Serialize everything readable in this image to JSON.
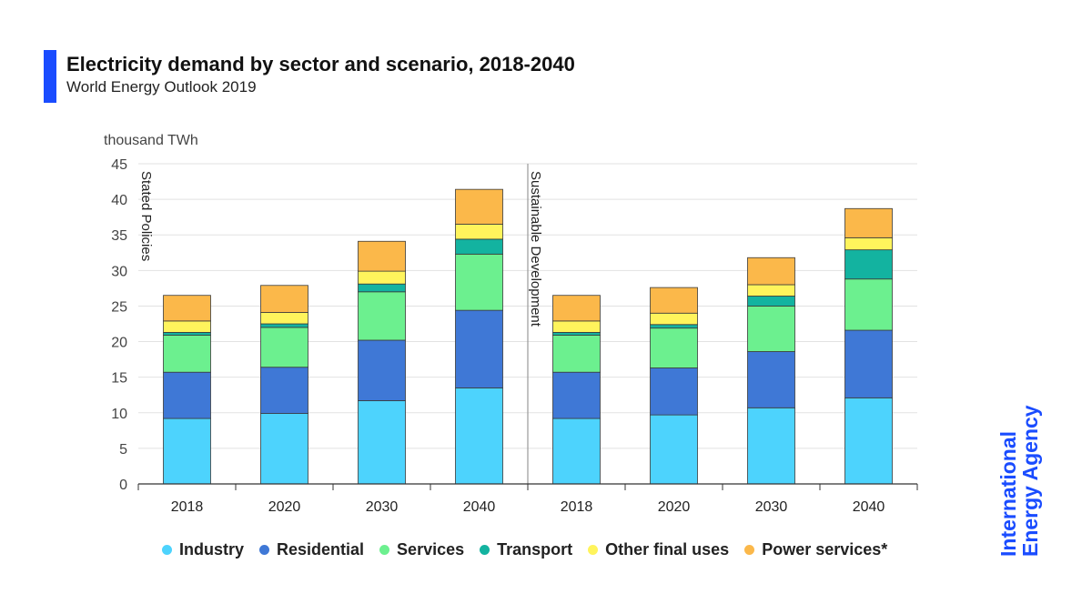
{
  "header": {
    "title": "Electricity demand by sector and scenario, 2018-2040",
    "subtitle": "World Energy Outlook 2019"
  },
  "logo": {
    "line1": "International",
    "line2": "Energy Agency",
    "color": "#1a4cff"
  },
  "chart_data": {
    "type": "bar",
    "stacked": true,
    "ylabel": "thousand TWh",
    "ylim": [
      0,
      45
    ],
    "yticks": [
      0,
      5,
      10,
      15,
      20,
      25,
      30,
      35,
      40,
      45
    ],
    "grid": true,
    "legend_position": "bottom",
    "groups": [
      {
        "label": "Stated Policies",
        "categories": [
          "2018",
          "2020",
          "2030",
          "2040"
        ]
      },
      {
        "label": "Sustainable Development",
        "categories": [
          "2018",
          "2020",
          "2030",
          "2040"
        ]
      }
    ],
    "categories": [
      "2018",
      "2020",
      "2030",
      "2040",
      "2018",
      "2020",
      "2030",
      "2040"
    ],
    "series": [
      {
        "name": "Industry",
        "color": "#4dd3fd",
        "values": [
          9.2,
          9.9,
          11.7,
          13.5,
          9.2,
          9.7,
          10.7,
          12.1
        ]
      },
      {
        "name": "Residential",
        "color": "#3f78d6",
        "values": [
          6.5,
          6.5,
          8.5,
          10.9,
          6.5,
          6.6,
          7.9,
          9.5
        ]
      },
      {
        "name": "Services",
        "color": "#6cf08f",
        "values": [
          5.2,
          5.6,
          6.8,
          7.9,
          5.2,
          5.6,
          6.4,
          7.2
        ]
      },
      {
        "name": "Transport",
        "color": "#13b3a0",
        "values": [
          0.4,
          0.5,
          1.1,
          2.1,
          0.4,
          0.5,
          1.4,
          4.1
        ]
      },
      {
        "name": "Other final uses",
        "color": "#fff45c",
        "values": [
          1.6,
          1.6,
          1.8,
          2.1,
          1.6,
          1.6,
          1.6,
          1.7
        ]
      },
      {
        "name": "Power services*",
        "color": "#fbb84a",
        "values": [
          3.6,
          3.8,
          4.2,
          4.9,
          3.6,
          3.6,
          3.8,
          4.1
        ]
      }
    ]
  }
}
